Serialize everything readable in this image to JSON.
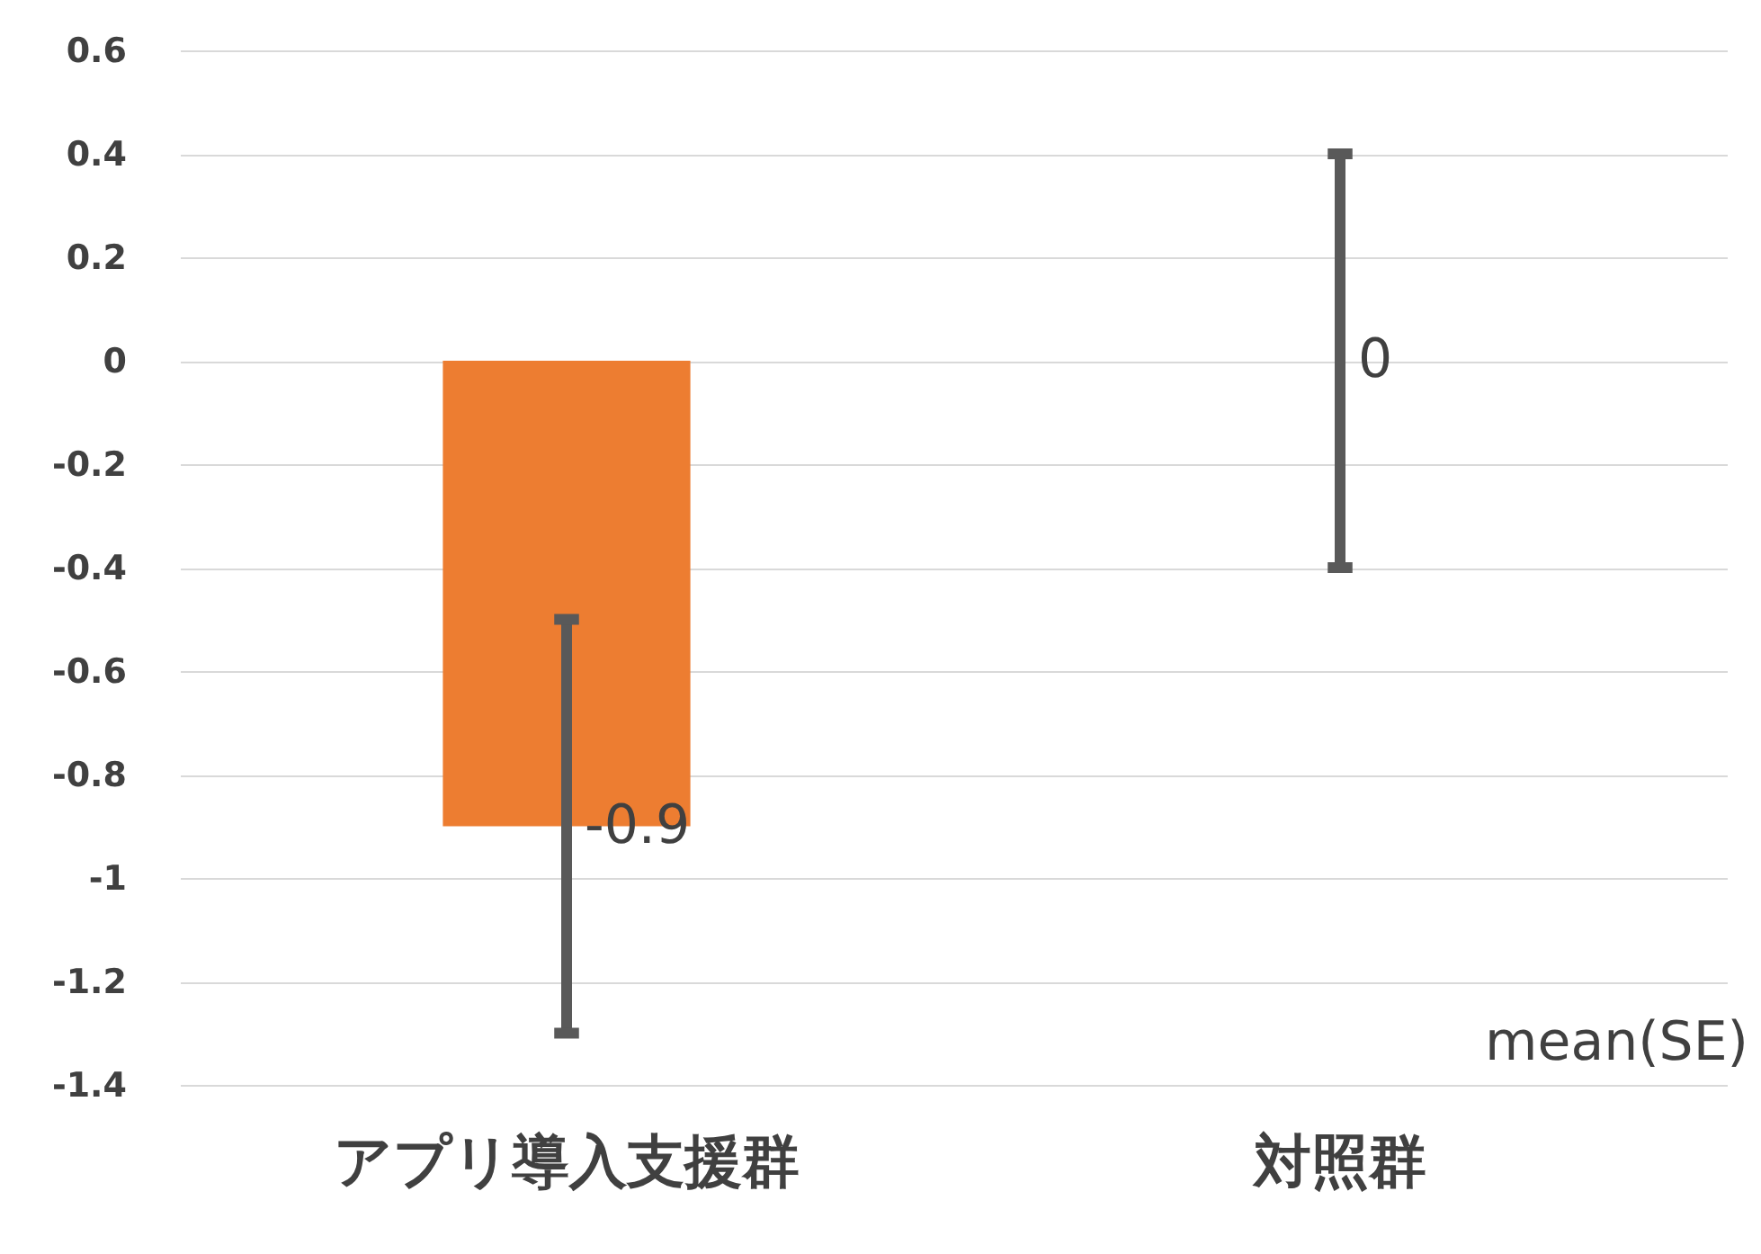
{
  "chart_data": {
    "type": "bar",
    "categories": [
      "アプリ導入支援群",
      "対照群"
    ],
    "values": [
      -0.9,
      0
    ],
    "errors": [
      0.4,
      0.4
    ],
    "color": "#ed7d31",
    "ylim": [
      -1.4,
      0.6
    ],
    "yticks": [
      -1.4,
      -1.2,
      -1,
      -0.8,
      -0.6,
      -0.4,
      -0.2,
      0,
      0.2,
      0.4,
      0.6
    ],
    "grid": "y",
    "data_labels": true,
    "annotations": [
      "mean(SE)"
    ]
  }
}
